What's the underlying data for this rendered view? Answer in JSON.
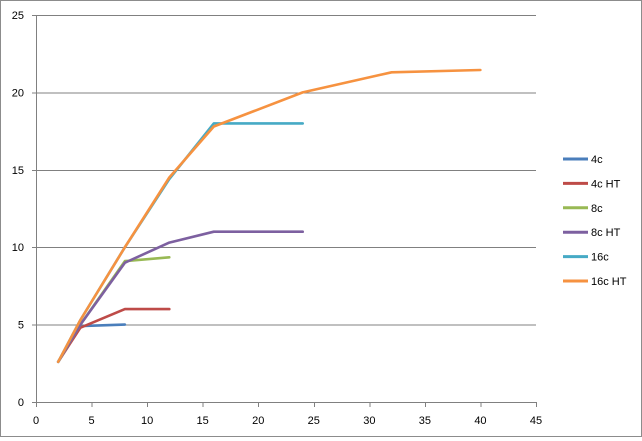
{
  "chart_data": {
    "type": "line",
    "title": "",
    "xlabel": "",
    "ylabel": "",
    "xlim": [
      0,
      45
    ],
    "ylim": [
      0,
      25
    ],
    "x_ticks": [
      0,
      5,
      10,
      15,
      20,
      25,
      30,
      35,
      40,
      45
    ],
    "y_ticks": [
      0,
      5,
      10,
      15,
      20,
      25
    ],
    "grid": "horizontal",
    "legend_position": "right",
    "series": [
      {
        "name": "4c",
        "color": "#4a7ebb",
        "points": [
          [
            2,
            2.6
          ],
          [
            4,
            4.9
          ],
          [
            8,
            5.0
          ]
        ]
      },
      {
        "name": "4c HT",
        "color": "#be4b48",
        "points": [
          [
            2,
            2.6
          ],
          [
            4,
            4.8
          ],
          [
            8,
            6.0
          ],
          [
            12,
            6.0
          ]
        ]
      },
      {
        "name": "8c",
        "color": "#98b954",
        "points": [
          [
            2,
            2.6
          ],
          [
            4,
            5.0
          ],
          [
            8,
            9.1
          ],
          [
            12,
            9.35
          ]
        ]
      },
      {
        "name": "8c HT",
        "color": "#7d60a0",
        "points": [
          [
            2,
            2.6
          ],
          [
            4,
            5.0
          ],
          [
            8,
            9.0
          ],
          [
            12,
            10.3
          ],
          [
            16,
            11.0
          ],
          [
            24,
            11.0
          ]
        ]
      },
      {
        "name": "16c",
        "color": "#46aac5",
        "points": [
          [
            2,
            2.6
          ],
          [
            4,
            5.3
          ],
          [
            8,
            10.0
          ],
          [
            12,
            14.4
          ],
          [
            16,
            18.0
          ],
          [
            24,
            18.0
          ]
        ]
      },
      {
        "name": "16c HT",
        "color": "#f69240",
        "points": [
          [
            2,
            2.6
          ],
          [
            4,
            5.3
          ],
          [
            8,
            10.0
          ],
          [
            12,
            14.5
          ],
          [
            16,
            17.8
          ],
          [
            24,
            20.0
          ],
          [
            32,
            21.3
          ],
          [
            40,
            21.45
          ]
        ]
      }
    ]
  }
}
